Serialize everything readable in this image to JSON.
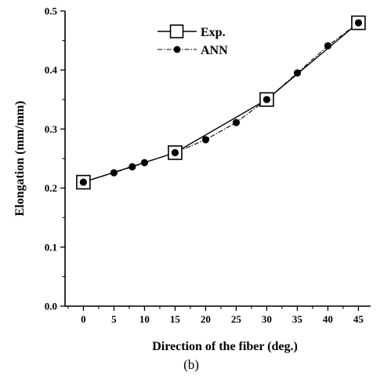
{
  "chart_data": {
    "type": "line",
    "xlabel": "Direction of the fiber (deg.)",
    "ylabel": "Elongation (mm/mm)",
    "caption": "(b)",
    "xlim": [
      -3,
      47
    ],
    "ylim": [
      0.0,
      0.5
    ],
    "x_ticks": [
      0,
      5,
      10,
      15,
      20,
      25,
      30,
      35,
      40,
      45
    ],
    "y_ticks": [
      0.0,
      0.1,
      0.2,
      0.3,
      0.4,
      0.5
    ],
    "x_tick_labels": [
      "0",
      "5",
      "10",
      "15",
      "20",
      "25",
      "30",
      "35",
      "40",
      "45"
    ],
    "y_tick_labels": [
      "0.0",
      "0.1",
      "0.2",
      "0.3",
      "0.4",
      "0.5"
    ],
    "legend_position": "top-center",
    "grid": false,
    "series": [
      {
        "name": "Exp.",
        "marker": "open-square",
        "line": "solid",
        "color": "#000000",
        "x": [
          0,
          15,
          30,
          45
        ],
        "y": [
          0.21,
          0.26,
          0.35,
          0.48
        ]
      },
      {
        "name": "ANN",
        "marker": "filled-circle",
        "line": "dash-dot",
        "color": "#000000",
        "x": [
          0,
          5,
          8,
          10,
          15,
          20,
          25,
          30,
          35,
          40,
          45
        ],
        "y": [
          0.21,
          0.226,
          0.236,
          0.243,
          0.26,
          0.282,
          0.311,
          0.35,
          0.395,
          0.441,
          0.48
        ]
      }
    ]
  }
}
